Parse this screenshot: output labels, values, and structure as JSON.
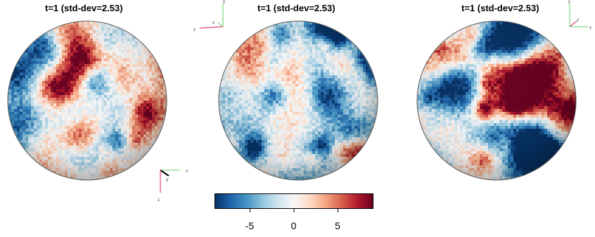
{
  "panels": [
    {
      "title": "t=1  (std-dev=2.53)",
      "axes": {
        "labels": [
          "x",
          "y",
          "z"
        ]
      }
    },
    {
      "title": "t=1  (std-dev=2.53)",
      "axes": {
        "labels": [
          "x",
          "y",
          "z"
        ]
      }
    },
    {
      "title": "t=1  (std-dev=2.53)",
      "axes": {
        "labels": [
          "x",
          "y",
          "z"
        ]
      }
    }
  ],
  "colorbar": {
    "ticks": [
      "-5",
      "0",
      "5"
    ],
    "range": [
      -9,
      9
    ],
    "colors": [
      "#053061",
      "#2166ac",
      "#4393c3",
      "#92c5de",
      "#d1e5f0",
      "#f7f7f7",
      "#fddbc7",
      "#f4a582",
      "#d6604d",
      "#b2182b",
      "#67001f"
    ]
  }
}
